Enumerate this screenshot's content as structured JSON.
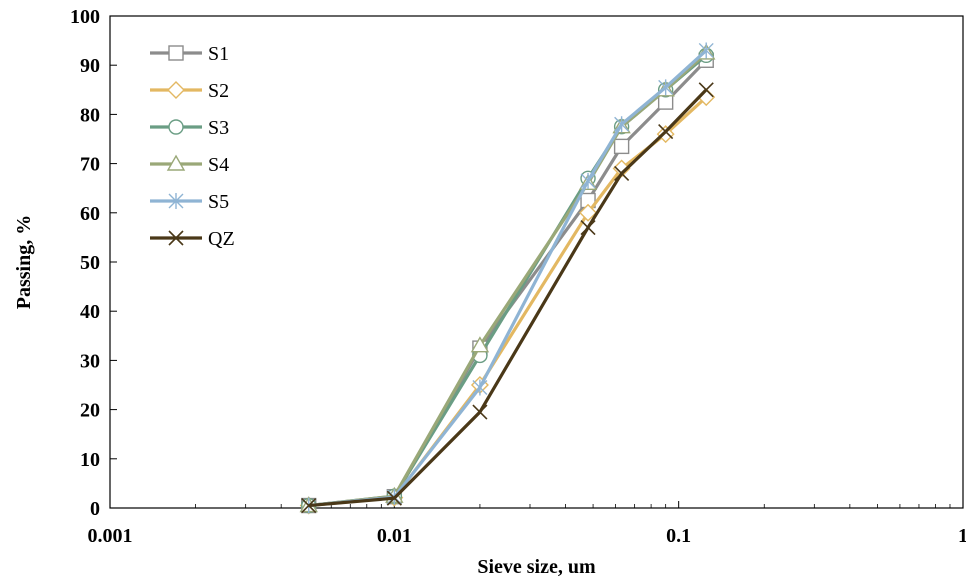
{
  "chart_data": {
    "type": "line",
    "xscale": "log",
    "xlim": [
      0.001,
      1
    ],
    "ylim": [
      0,
      100
    ],
    "xlabel": "Sieve size, um",
    "ylabel": "Passing, %",
    "x_ticks": [
      0.001,
      0.01,
      0.1,
      1
    ],
    "x_tick_labels": [
      "0.001",
      "0.01",
      "0.1",
      "1"
    ],
    "y_ticks": [
      0,
      10,
      20,
      30,
      40,
      50,
      60,
      70,
      80,
      90,
      100
    ],
    "y_tick_labels": [
      "0",
      "10",
      "20",
      "30",
      "40",
      "50",
      "60",
      "70",
      "80",
      "90",
      "100"
    ],
    "grid": false,
    "legend_position": "top-left",
    "series": [
      {
        "name": "S1",
        "color": "#8c8c8c",
        "marker": "square",
        "x": [
          0.005,
          0.01,
          0.02,
          0.048,
          0.063,
          0.09,
          0.125
        ],
        "y": [
          0.5,
          2.3,
          32.5,
          62.5,
          73.5,
          82.5,
          91
        ]
      },
      {
        "name": "S2",
        "color": "#e3b862",
        "marker": "diamond",
        "x": [
          0.005,
          0.01,
          0.02,
          0.048,
          0.063,
          0.09,
          0.125
        ],
        "y": [
          0.5,
          2.1,
          25,
          60,
          69,
          76,
          83.5
        ]
      },
      {
        "name": "S3",
        "color": "#6a9d84",
        "marker": "circle",
        "x": [
          0.005,
          0.01,
          0.02,
          0.048,
          0.063,
          0.09,
          0.125
        ],
        "y": [
          0.5,
          2.4,
          31,
          67,
          77.5,
          85,
          92
        ]
      },
      {
        "name": "S4",
        "color": "#9aa878",
        "marker": "triangle",
        "x": [
          0.005,
          0.01,
          0.02,
          0.048,
          0.063,
          0.09,
          0.125
        ],
        "y": [
          0.5,
          2.4,
          33,
          66,
          77.5,
          85,
          92.5
        ]
      },
      {
        "name": "S5",
        "color": "#8fb4d4",
        "marker": "asterisk",
        "x": [
          0.005,
          0.01,
          0.02,
          0.048,
          0.063,
          0.09,
          0.125
        ],
        "y": [
          0.5,
          2.2,
          24.5,
          66.5,
          78,
          85.5,
          93
        ]
      },
      {
        "name": "QZ",
        "color": "#4a3818",
        "marker": "x",
        "x": [
          0.005,
          0.01,
          0.02,
          0.048,
          0.063,
          0.09,
          0.125
        ],
        "y": [
          0.5,
          2,
          19.5,
          57,
          68,
          76.5,
          85
        ]
      }
    ]
  }
}
